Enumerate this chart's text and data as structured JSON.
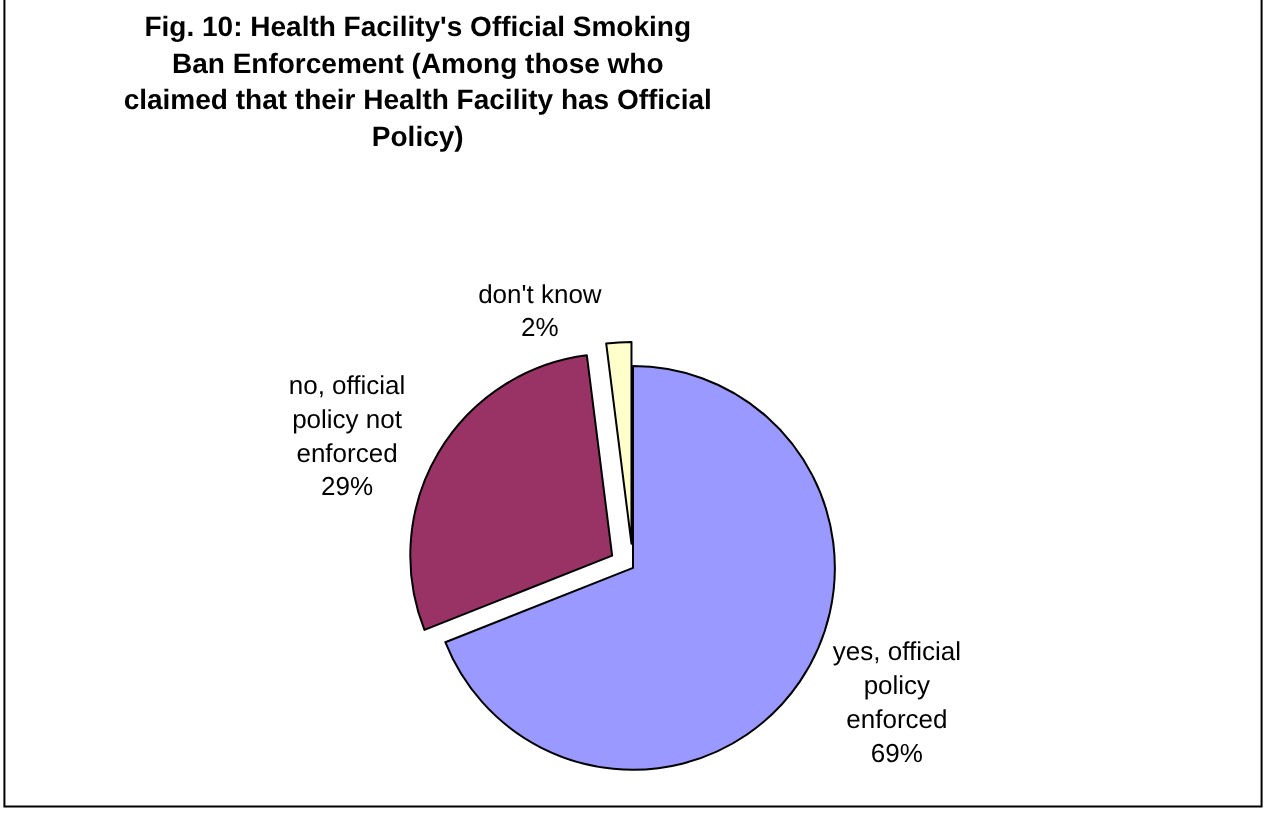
{
  "chart_data": {
    "type": "pie",
    "title": "Fig. 10: Health Facility's Official Smoking\nBan Enforcement (Among those who\nclaimed that their Health Facility has Official\nPolicy)",
    "categories": [
      "yes, official\npolicy\nenforced",
      "no, official\npolicy not\nenforced",
      "don't know"
    ],
    "values": [
      69,
      29,
      2
    ],
    "value_labels": [
      "69%",
      "29%",
      "2%"
    ],
    "colors": [
      "#9999ff",
      "#993366",
      "#ffffcc"
    ],
    "legend": false
  }
}
